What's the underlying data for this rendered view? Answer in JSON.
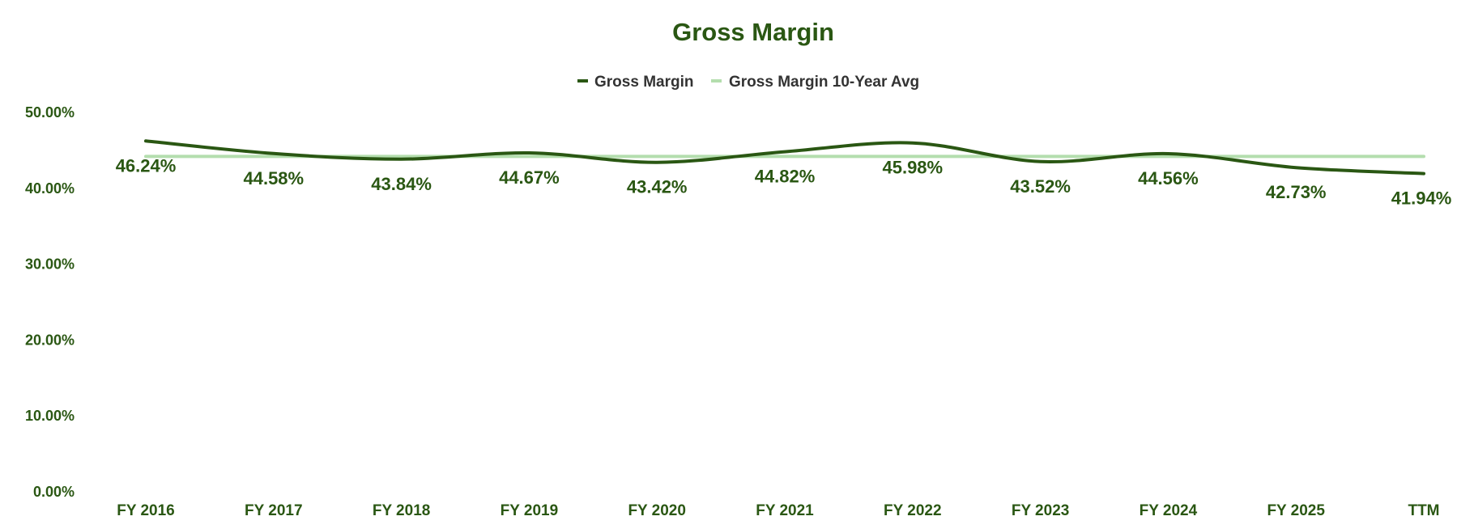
{
  "colors": {
    "primary": "#2a5713",
    "average": "#b4deae",
    "legend_text": "#333333"
  },
  "chart_data": {
    "type": "line",
    "title": "Gross Margin",
    "xlabel": "",
    "ylabel": "",
    "categories": [
      "FY 2016",
      "FY 2017",
      "FY 2018",
      "FY 2019",
      "FY 2020",
      "FY 2021",
      "FY 2022",
      "FY 2023",
      "FY 2024",
      "FY 2025",
      "TTM"
    ],
    "series": [
      {
        "name": "Gross Margin",
        "values": [
          46.24,
          44.58,
          43.84,
          44.67,
          43.42,
          44.82,
          45.98,
          43.52,
          44.56,
          42.73,
          41.94
        ],
        "labels": [
          "46.24%",
          "44.58%",
          "43.84%",
          "44.67%",
          "43.42%",
          "44.82%",
          "45.98%",
          "43.52%",
          "44.56%",
          "42.73%",
          "41.94%"
        ]
      },
      {
        "name": "Gross Margin 10-Year Avg",
        "values": [
          44.2,
          44.2,
          44.2,
          44.2,
          44.2,
          44.2,
          44.2,
          44.2,
          44.2,
          44.2,
          44.2
        ]
      }
    ],
    "ylim": [
      0,
      50
    ],
    "yticks": [
      {
        "value": 50,
        "label": "50.00%"
      },
      {
        "value": 40,
        "label": "40.00%"
      },
      {
        "value": 30,
        "label": "30.00%"
      },
      {
        "value": 20,
        "label": "20.00%"
      },
      {
        "value": 10,
        "label": "10.00%"
      },
      {
        "value": 0,
        "label": "0.00%"
      }
    ],
    "grid": false,
    "legend_position": "top-center"
  }
}
